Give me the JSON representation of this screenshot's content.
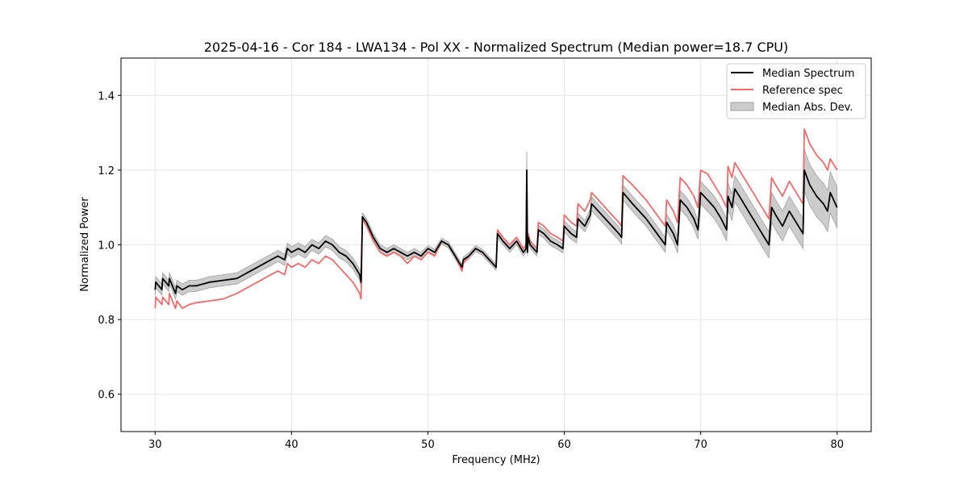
{
  "chart_data": {
    "type": "line",
    "title": "2025-04-16 - Cor 184 - LWA134 - Pol XX - Normalized Spectrum (Median power=18.7 CPU)",
    "xlabel": "Frequency (MHz)",
    "ylabel": "Normalized Power",
    "xlim": [
      27.5,
      82.5
    ],
    "ylim": [
      0.5,
      1.5
    ],
    "xticks": [
      30,
      40,
      50,
      60,
      70,
      80
    ],
    "yticks": [
      0.6,
      0.8,
      1.0,
      1.2,
      1.4
    ],
    "xtick_labels": [
      "30",
      "40",
      "50",
      "60",
      "70",
      "80"
    ],
    "ytick_labels": [
      "0.6",
      "0.8",
      "1.0",
      "1.2",
      "1.4"
    ],
    "grid": true,
    "legend_position": "top-right",
    "legend": [
      "Median Spectrum",
      "Reference spec",
      "Median Abs. Dev."
    ],
    "colors": {
      "median": "#000000",
      "reference": "#f26b6b",
      "mad_fill": "#cccccc",
      "mad_edge": "#a0a0a0",
      "grid": "#e6e6e6"
    },
    "series": [
      {
        "name": "Median Spectrum",
        "x": [
          30.0,
          30.05,
          30.5,
          30.55,
          31.0,
          31.05,
          31.5,
          31.6,
          32.0,
          32.5,
          33.0,
          34.0,
          35.0,
          36.0,
          36.5,
          37.0,
          37.5,
          38.0,
          38.5,
          39.0,
          39.5,
          39.7,
          40.0,
          40.5,
          41.0,
          41.5,
          42.0,
          42.5,
          43.0,
          43.5,
          44.0,
          44.5,
          45.0,
          45.1,
          45.2,
          45.5,
          46.0,
          46.5,
          47.0,
          47.5,
          48.0,
          48.5,
          49.0,
          49.5,
          50.0,
          50.5,
          51.0,
          51.5,
          52.0,
          52.5,
          52.6,
          53.0,
          53.5,
          54.0,
          54.5,
          55.0,
          55.1,
          55.5,
          56.0,
          56.5,
          57.0,
          57.2,
          57.25,
          57.3,
          57.35,
          57.5,
          58.0,
          58.1,
          58.5,
          59.0,
          59.5,
          59.9,
          60.0,
          60.5,
          60.9,
          61.0,
          61.5,
          61.9,
          62.0,
          62.5,
          63.0,
          63.5,
          64.0,
          64.2,
          64.3,
          65.0,
          66.0,
          67.0,
          67.4,
          67.5,
          68.0,
          68.3,
          68.5,
          69.0,
          69.5,
          69.8,
          70.0,
          70.5,
          71.0,
          71.5,
          71.9,
          72.0,
          72.3,
          72.5,
          73.0,
          73.5,
          74.0,
          74.5,
          75.0,
          75.2,
          75.5,
          76.0,
          76.5,
          77.0,
          77.5,
          77.6,
          78.0,
          78.5,
          79.0,
          79.3,
          79.5,
          80.0
        ],
        "values": [
          0.88,
          0.9,
          0.88,
          0.91,
          0.89,
          0.91,
          0.87,
          0.89,
          0.88,
          0.89,
          0.89,
          0.9,
          0.905,
          0.91,
          0.92,
          0.93,
          0.94,
          0.95,
          0.96,
          0.97,
          0.96,
          0.99,
          0.98,
          0.99,
          0.98,
          1.0,
          0.99,
          1.01,
          1.0,
          0.98,
          0.97,
          0.95,
          0.92,
          0.9,
          1.075,
          1.06,
          1.02,
          0.99,
          0.98,
          0.99,
          0.98,
          0.97,
          0.98,
          0.97,
          0.99,
          0.98,
          1.01,
          1.0,
          0.97,
          0.94,
          0.96,
          0.97,
          0.99,
          0.98,
          0.96,
          0.94,
          1.03,
          1.01,
          0.99,
          1.01,
          0.98,
          0.99,
          1.2,
          0.98,
          1.02,
          1.0,
          0.98,
          1.04,
          1.03,
          1.01,
          1.0,
          0.99,
          1.05,
          1.03,
          1.02,
          1.07,
          1.05,
          1.08,
          1.11,
          1.09,
          1.07,
          1.05,
          1.03,
          1.02,
          1.14,
          1.11,
          1.07,
          1.02,
          1.0,
          1.06,
          1.03,
          1.0,
          1.12,
          1.1,
          1.07,
          1.04,
          1.14,
          1.12,
          1.1,
          1.07,
          1.04,
          1.13,
          1.1,
          1.15,
          1.12,
          1.09,
          1.06,
          1.03,
          1.0,
          1.1,
          1.08,
          1.05,
          1.09,
          1.06,
          1.03,
          1.2,
          1.16,
          1.13,
          1.11,
          1.09,
          1.14,
          1.1
        ]
      },
      {
        "name": "Reference spec",
        "x": [
          30.0,
          30.05,
          30.5,
          30.55,
          31.0,
          31.05,
          31.5,
          31.6,
          32.0,
          32.5,
          33.0,
          34.0,
          35.0,
          36.0,
          36.5,
          37.0,
          37.5,
          38.0,
          38.5,
          39.0,
          39.5,
          39.7,
          40.0,
          40.5,
          41.0,
          41.5,
          42.0,
          42.5,
          43.0,
          43.5,
          44.0,
          44.5,
          45.0,
          45.1,
          45.2,
          45.5,
          46.0,
          46.5,
          47.0,
          47.5,
          48.0,
          48.5,
          49.0,
          49.5,
          50.0,
          50.5,
          51.0,
          51.5,
          52.0,
          52.5,
          52.6,
          53.0,
          53.5,
          54.0,
          54.5,
          55.0,
          55.1,
          55.5,
          56.0,
          56.5,
          57.0,
          57.2,
          57.25,
          57.3,
          57.35,
          57.5,
          58.0,
          58.1,
          58.5,
          59.0,
          59.5,
          59.9,
          60.0,
          60.5,
          60.9,
          61.0,
          61.5,
          61.9,
          62.0,
          62.5,
          63.0,
          63.5,
          64.0,
          64.2,
          64.3,
          65.0,
          66.0,
          67.0,
          67.4,
          67.5,
          68.0,
          68.3,
          68.5,
          69.0,
          69.5,
          69.8,
          70.0,
          70.5,
          71.0,
          71.5,
          71.9,
          72.0,
          72.3,
          72.5,
          73.0,
          73.5,
          74.0,
          74.5,
          75.0,
          75.2,
          75.5,
          76.0,
          76.5,
          77.0,
          77.5,
          77.6,
          78.0,
          78.5,
          79.0,
          79.3,
          79.5,
          80.0
        ],
        "values": [
          0.83,
          0.86,
          0.84,
          0.86,
          0.84,
          0.87,
          0.83,
          0.85,
          0.83,
          0.84,
          0.845,
          0.85,
          0.855,
          0.87,
          0.88,
          0.89,
          0.9,
          0.91,
          0.92,
          0.93,
          0.92,
          0.95,
          0.94,
          0.95,
          0.94,
          0.96,
          0.95,
          0.97,
          0.96,
          0.94,
          0.92,
          0.9,
          0.87,
          0.855,
          1.07,
          1.05,
          1.01,
          0.98,
          0.97,
          0.98,
          0.97,
          0.95,
          0.97,
          0.96,
          0.98,
          0.97,
          1.01,
          1.0,
          0.97,
          0.93,
          0.95,
          0.97,
          0.99,
          0.98,
          0.96,
          0.94,
          1.04,
          1.02,
          1.0,
          1.02,
          0.99,
          1.0,
          1.2,
          0.99,
          1.03,
          1.01,
          0.99,
          1.06,
          1.05,
          1.03,
          1.02,
          1.01,
          1.08,
          1.06,
          1.05,
          1.11,
          1.09,
          1.12,
          1.14,
          1.12,
          1.1,
          1.08,
          1.06,
          1.05,
          1.185,
          1.16,
          1.12,
          1.07,
          1.05,
          1.12,
          1.09,
          1.06,
          1.18,
          1.16,
          1.13,
          1.1,
          1.2,
          1.19,
          1.16,
          1.13,
          1.1,
          1.21,
          1.18,
          1.22,
          1.19,
          1.16,
          1.13,
          1.1,
          1.07,
          1.18,
          1.16,
          1.13,
          1.17,
          1.14,
          1.11,
          1.31,
          1.27,
          1.24,
          1.22,
          1.2,
          1.23,
          1.2
        ]
      }
    ],
    "mad": [
      0.015,
      0.015,
      0.015,
      0.015,
      0.015,
      0.015,
      0.015,
      0.015,
      0.015,
      0.015,
      0.015,
      0.015,
      0.015,
      0.015,
      0.015,
      0.015,
      0.015,
      0.015,
      0.015,
      0.015,
      0.015,
      0.015,
      0.015,
      0.015,
      0.015,
      0.015,
      0.015,
      0.015,
      0.015,
      0.015,
      0.015,
      0.015,
      0.015,
      0.015,
      0.01,
      0.01,
      0.01,
      0.01,
      0.01,
      0.01,
      0.01,
      0.01,
      0.01,
      0.01,
      0.008,
      0.008,
      0.008,
      0.008,
      0.008,
      0.008,
      0.008,
      0.008,
      0.008,
      0.008,
      0.008,
      0.008,
      0.01,
      0.01,
      0.01,
      0.01,
      0.01,
      0.01,
      0.05,
      0.01,
      0.01,
      0.01,
      0.01,
      0.012,
      0.012,
      0.012,
      0.012,
      0.012,
      0.015,
      0.015,
      0.015,
      0.015,
      0.015,
      0.015,
      0.018,
      0.018,
      0.018,
      0.018,
      0.018,
      0.018,
      0.02,
      0.02,
      0.02,
      0.02,
      0.02,
      0.022,
      0.022,
      0.022,
      0.025,
      0.025,
      0.025,
      0.025,
      0.03,
      0.03,
      0.03,
      0.03,
      0.03,
      0.035,
      0.035,
      0.035,
      0.035,
      0.035,
      0.035,
      0.035,
      0.035,
      0.04,
      0.04,
      0.04,
      0.04,
      0.04,
      0.04,
      0.055,
      0.055,
      0.055,
      0.055,
      0.055,
      0.055,
      0.055
    ]
  }
}
